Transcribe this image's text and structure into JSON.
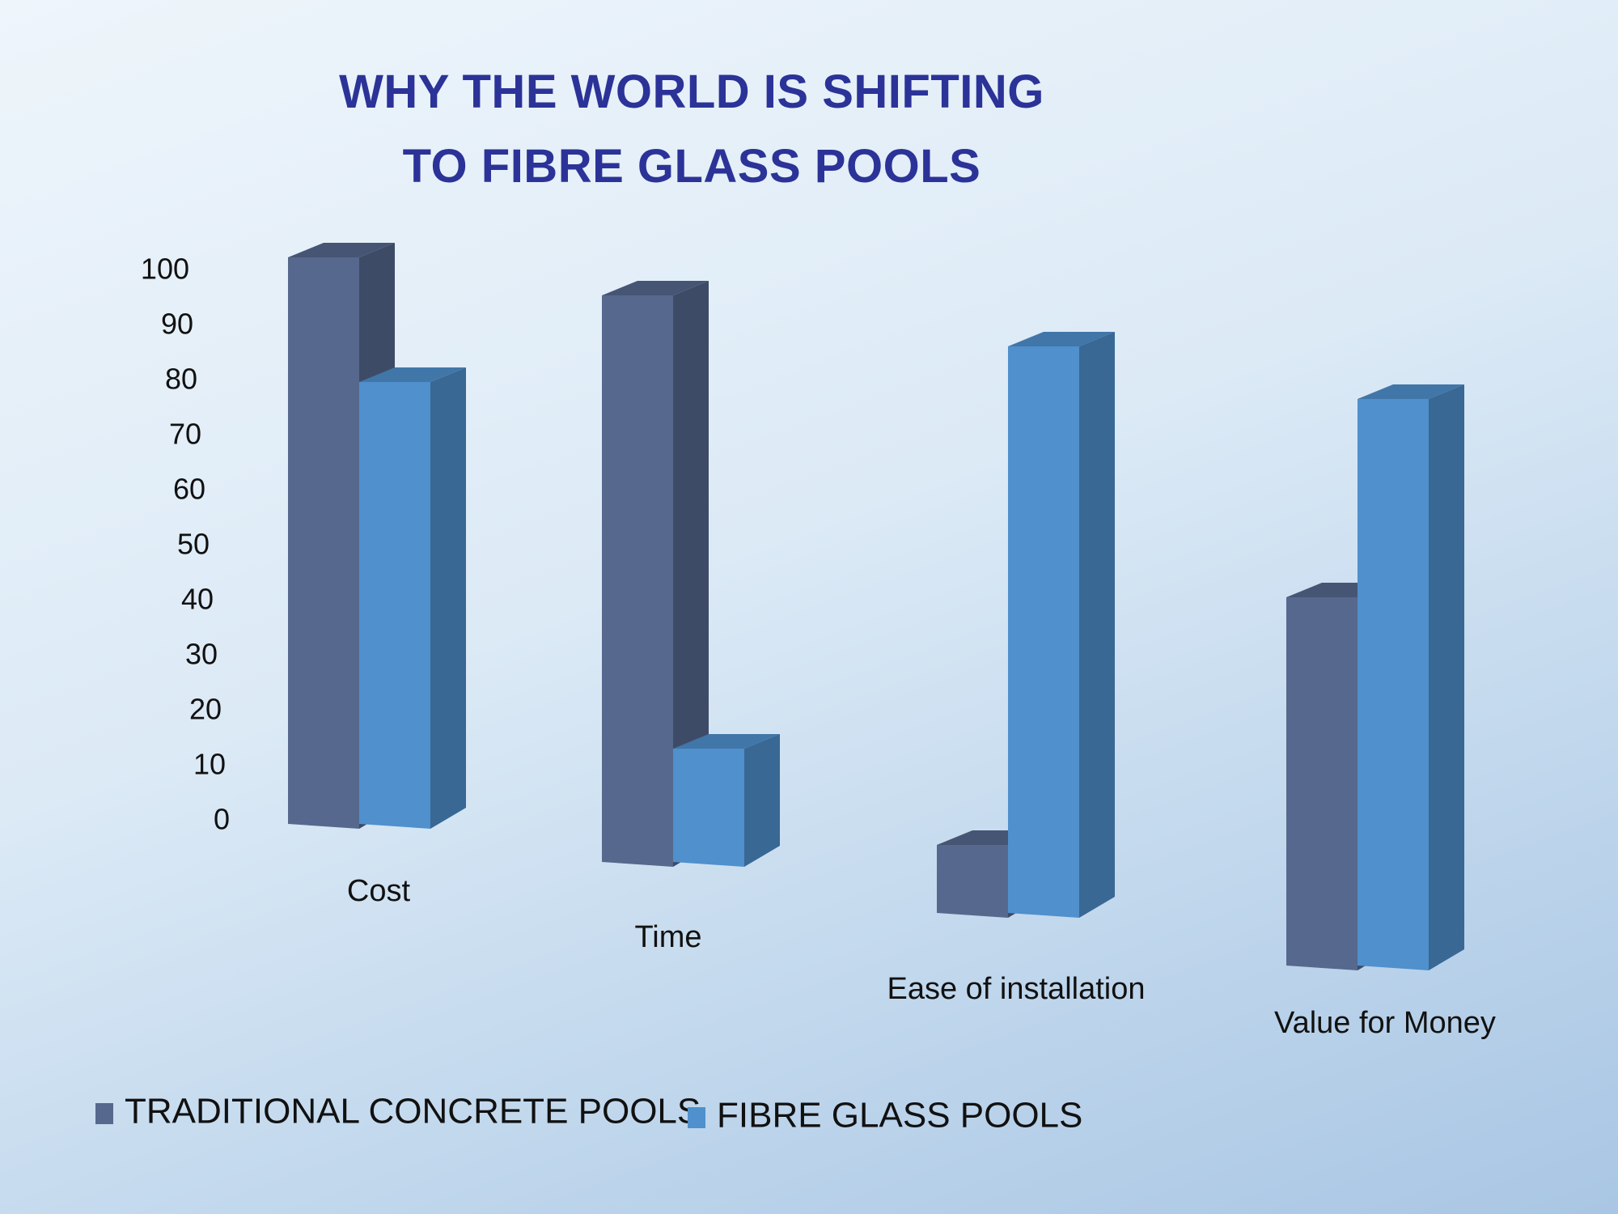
{
  "chart_data": {
    "type": "bar",
    "title_lines": [
      "WHY THE WORLD IS SHIFTING",
      "TO FIBRE GLASS POOLS"
    ],
    "categories": [
      "Cost",
      "Time",
      "Ease of installation",
      "Value for Money"
    ],
    "series": [
      {
        "name": "TRADITIONAL CONCRETE POOLS",
        "values": [
          100,
          100,
          12,
          65
        ],
        "color": "#56688d"
      },
      {
        "name": "FIBRE GLASS POOLS",
        "values": [
          78,
          20,
          100,
          100
        ],
        "color": "#4f90cd"
      }
    ],
    "yticks": [
      0,
      10,
      20,
      30,
      40,
      50,
      60,
      70,
      80,
      90,
      100
    ],
    "ylim": [
      0,
      100
    ],
    "legend_position": "bottom-left",
    "style": "3d-perspective",
    "grid": false
  }
}
